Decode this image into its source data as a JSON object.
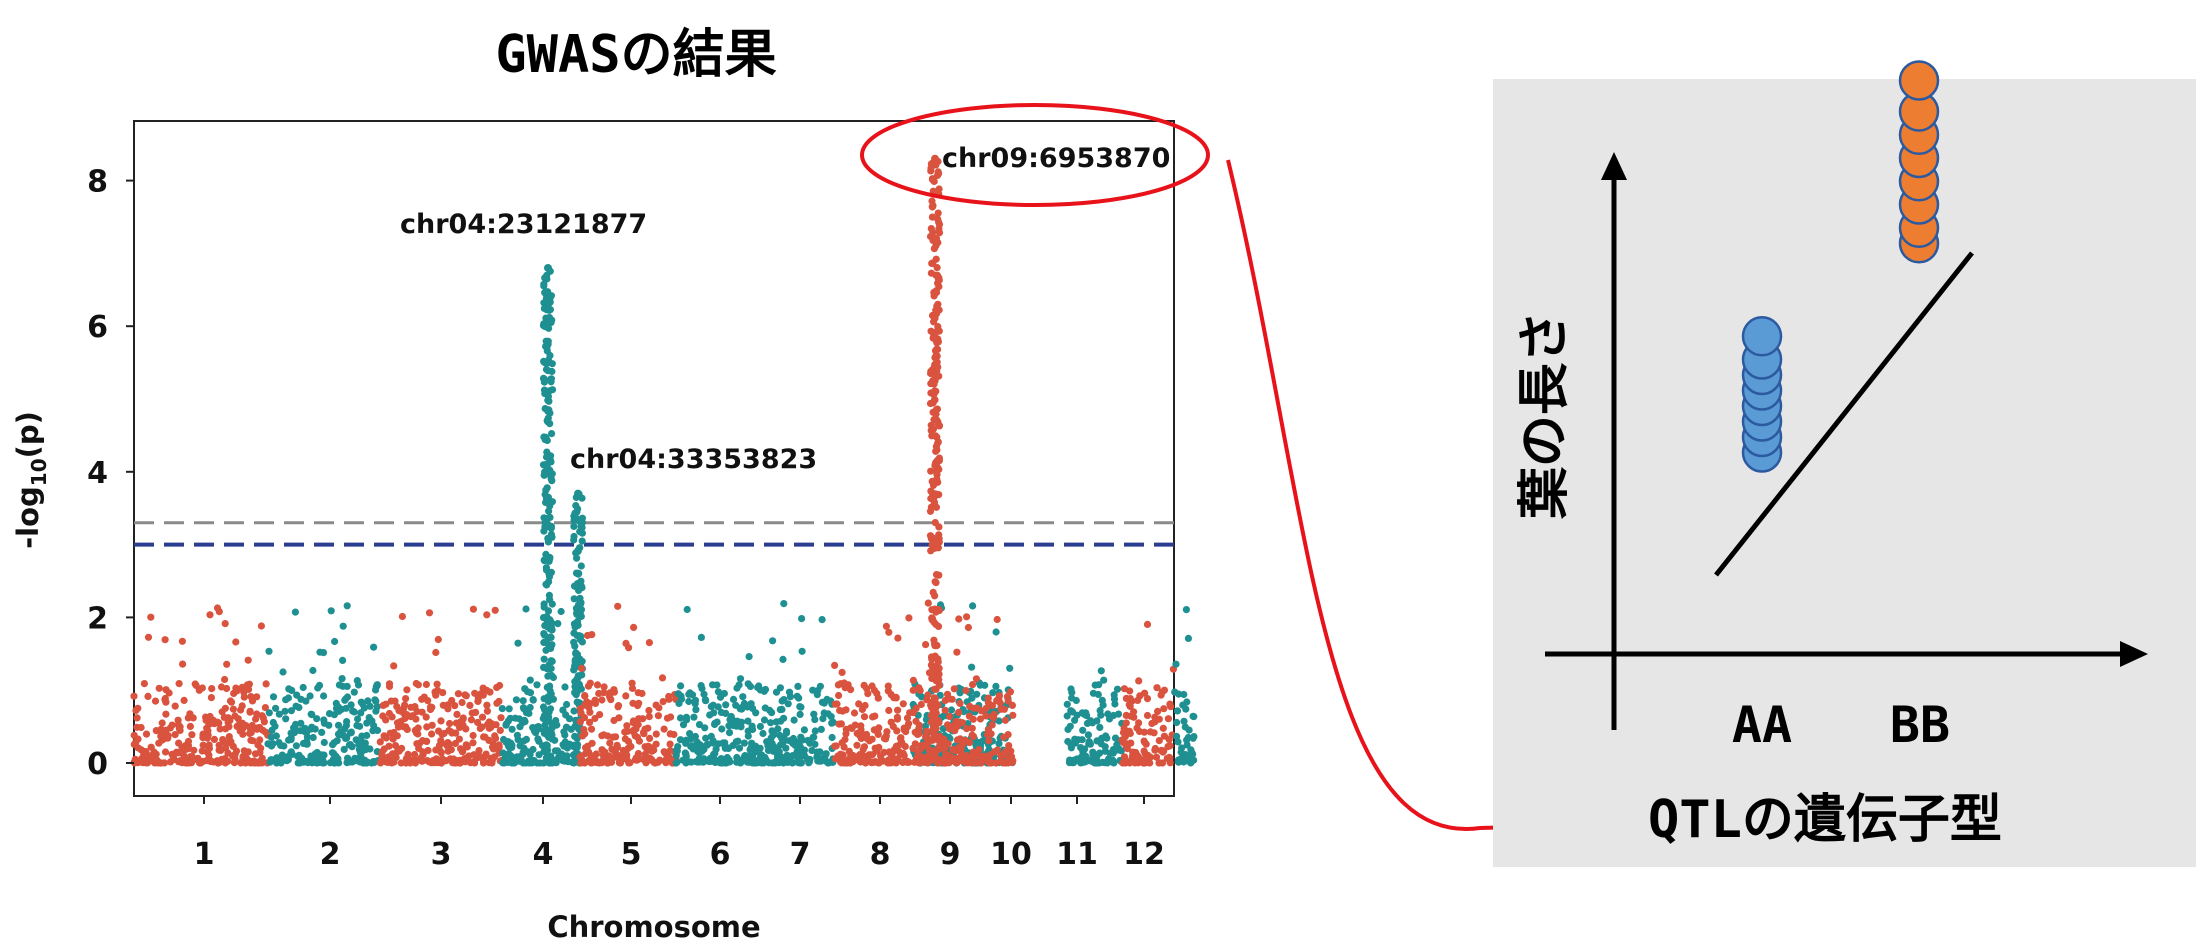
{
  "title": "GWASの結果",
  "manhattan": {
    "xlabel": "Chromosome",
    "ylabel": "-log",
    "ylabel_sub": "10",
    "ylabel_suffix": "(p)",
    "yticks": [
      "0",
      "2",
      "4",
      "6",
      "8"
    ],
    "chromosomes": [
      "1",
      "2",
      "3",
      "4",
      "5",
      "6",
      "7",
      "8",
      "9",
      "10",
      "11",
      "12"
    ],
    "annotations": [
      "chr04:23121877",
      "chr04:33353823",
      "chr09:6953870"
    ],
    "colors": {
      "odd": "#d9533e",
      "even": "#1f9092",
      "sig_line": "#2b3d8f",
      "sug_line": "#8a8a8a",
      "highlight": "#e8131a"
    }
  },
  "inset": {
    "ylabel": "葉の長さ",
    "xlabel": "QTLの遺伝子型",
    "categories": [
      "AA",
      "BB"
    ],
    "colors": {
      "AA": "#5b9bd5",
      "BB": "#ed7d31",
      "background": "#e6e6e6"
    }
  },
  "chart_data": [
    {
      "type": "scatter",
      "title": "GWASの結果",
      "xlabel": "Chromosome",
      "ylabel": "-log10(p)",
      "ylim": [
        0,
        8.8
      ],
      "categories": [
        "1",
        "2",
        "3",
        "4",
        "5",
        "6",
        "7",
        "8",
        "9",
        "10",
        "11",
        "12"
      ],
      "thresholds": [
        3.3,
        3.0
      ],
      "peaks": [
        {
          "label": "chr04:23121877",
          "chromosome": "4",
          "value": 6.8
        },
        {
          "label": "chr04:33353823",
          "chromosome": "4",
          "value": 3.7
        },
        {
          "label": "chr09:6953870",
          "chromosome": "9",
          "value": 8.3
        }
      ]
    },
    {
      "type": "scatter",
      "xlabel": "QTLの遺伝子型",
      "ylabel": "葉の長さ",
      "categories": [
        "AA",
        "BB"
      ],
      "series": [
        {
          "name": "AA",
          "values": [
            2.6,
            2.8,
            3.0,
            3.2,
            3.4,
            3.6,
            3.8,
            4.1
          ]
        },
        {
          "name": "BB",
          "values": [
            5.3,
            5.5,
            5.8,
            6.1,
            6.4,
            6.7,
            7.0,
            7.4
          ]
        }
      ]
    }
  ]
}
